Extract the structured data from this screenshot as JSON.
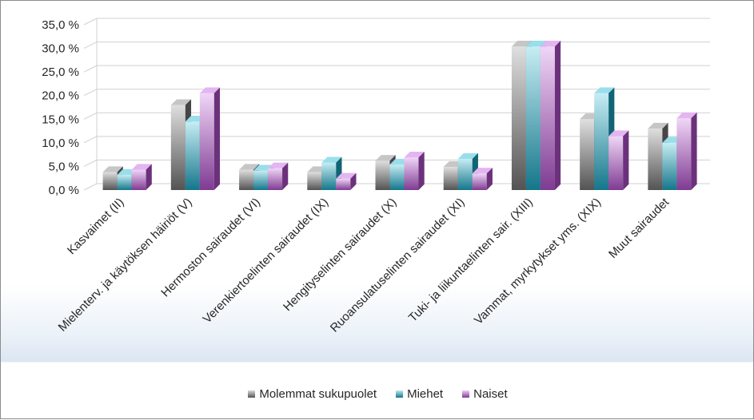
{
  "chart_data": {
    "type": "bar",
    "categories": [
      "Kasvaimet (II)",
      "Mielenterv. ja käytöksen häiriöt (V)",
      "Hermoston sairaudet (VI)",
      "Verenkiertoelinten sairaudet (IX)",
      "Hengityselinten sairaudet (X)",
      "Ruoansulatuselinten sairaudet (XI)",
      "Tuki- ja liikuntaelinten sair. (XIII)",
      "Vammat, myrkytykset yms. (XIX)",
      "Muut sairaudet"
    ],
    "series": [
      {
        "name": "Molemmat sukupuolet",
        "color": "#808080",
        "values": [
          3.8,
          18.0,
          4.3,
          3.8,
          6.2,
          4.9,
          30.4,
          15.0,
          13.0
        ]
      },
      {
        "name": "Miehet",
        "color": "#1fb6d4",
        "values": [
          3.2,
          14.5,
          4.1,
          5.8,
          5.4,
          6.6,
          30.4,
          20.5,
          10.0
        ]
      },
      {
        "name": "Naiset",
        "color": "#c35be0",
        "values": [
          4.3,
          20.5,
          4.6,
          2.4,
          6.9,
          3.5,
          30.4,
          11.4,
          15.2
        ]
      }
    ],
    "yticks": [
      "0,0 %",
      "5,0 %",
      "10,0 %",
      "15,0 %",
      "20,0 %",
      "25,0 %",
      "30,0 %",
      "35,0 %"
    ],
    "ylim": [
      0,
      35
    ],
    "grid": true,
    "legend_position": "bottom",
    "title": "",
    "xlabel": "",
    "ylabel": ""
  }
}
